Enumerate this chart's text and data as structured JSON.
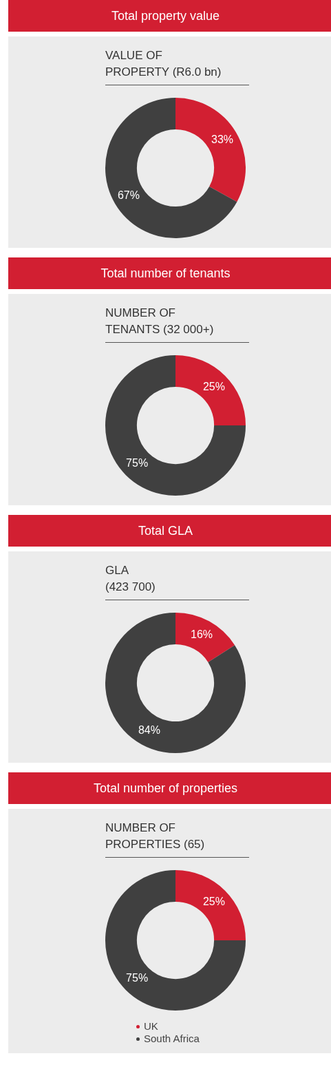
{
  "chart_data": [
    {
      "type": "donut",
      "title": "Total property value",
      "subtitle": "VALUE OF\nPROPERTY (R6.0 bn)",
      "categories": [
        null,
        null
      ],
      "values": [
        33,
        67
      ],
      "colors": [
        "#d21f32",
        "#404040"
      ],
      "value_labels": [
        "33%",
        "67%"
      ],
      "legend": false
    },
    {
      "type": "donut",
      "title": "Total number of tenants",
      "subtitle": "NUMBER OF\nTENANTS (32 000+)",
      "categories": [
        null,
        null
      ],
      "values": [
        25,
        75
      ],
      "colors": [
        "#d21f32",
        "#404040"
      ],
      "value_labels": [
        "25%",
        "75%"
      ],
      "legend": false
    },
    {
      "type": "donut",
      "title": "Total GLA",
      "subtitle": "GLA\n(423 700)",
      "categories": [
        null,
        null
      ],
      "values": [
        16,
        84
      ],
      "colors": [
        "#d21f32",
        "#404040"
      ],
      "value_labels": [
        "16%",
        "84%"
      ],
      "legend": false
    },
    {
      "type": "donut",
      "title": "Total number of properties",
      "subtitle": "NUMBER OF\nPROPERTIES (65)",
      "categories": [
        "UK",
        "South Africa"
      ],
      "values": [
        25,
        75
      ],
      "colors": [
        "#d21f32",
        "#404040"
      ],
      "value_labels": [
        "25%",
        "75%"
      ],
      "legend": "bottom"
    }
  ]
}
